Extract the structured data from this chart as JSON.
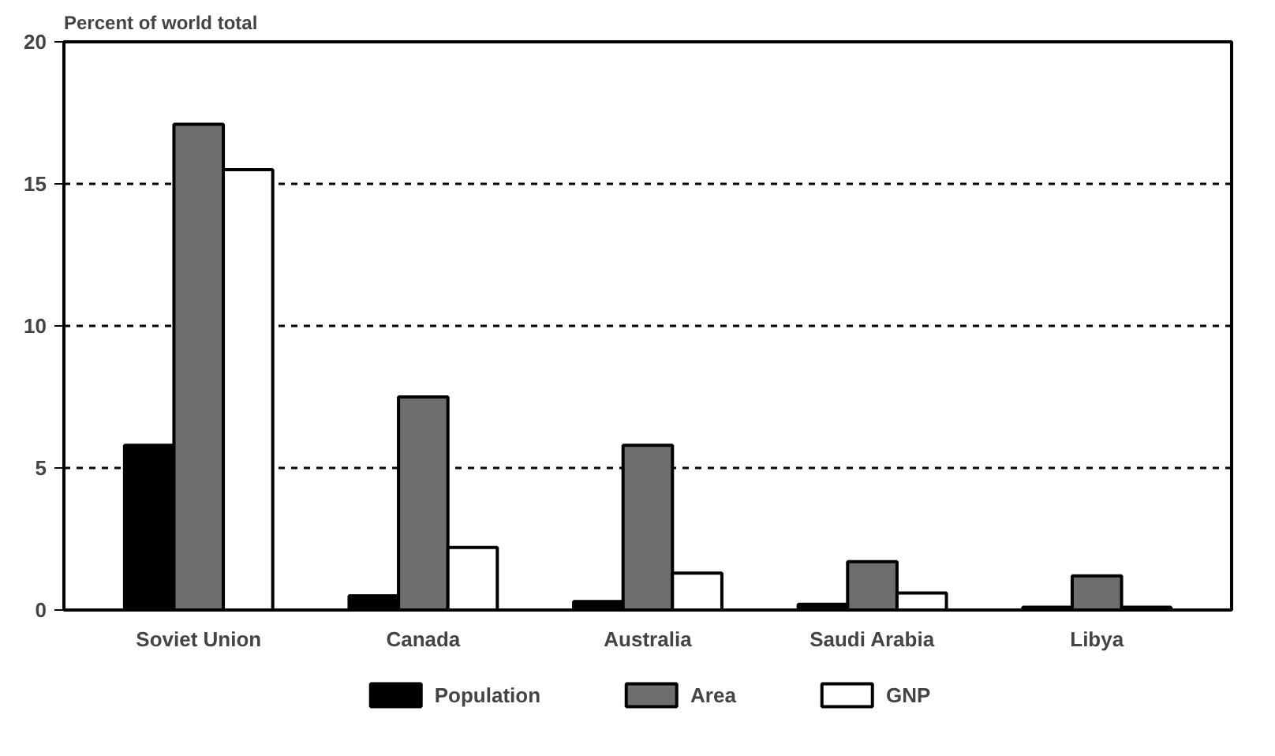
{
  "chart_data": {
    "type": "bar",
    "ylabel": "Percent of world total",
    "categories": [
      "Soviet Union",
      "Canada",
      "Australia",
      "Saudi Arabia",
      "Libya"
    ],
    "series": [
      {
        "name": "Population",
        "color": "#000000",
        "values": [
          5.8,
          0.5,
          0.3,
          0.2,
          0.1
        ]
      },
      {
        "name": "Area",
        "color": "#6e6e6e",
        "values": [
          17.1,
          7.5,
          5.8,
          1.7,
          1.2
        ]
      },
      {
        "name": "GNP",
        "color": "#ffffff",
        "values": [
          15.5,
          2.2,
          1.3,
          0.6,
          0.1
        ]
      }
    ],
    "ylim": [
      0,
      20
    ],
    "yticks": [
      0,
      5,
      10,
      15,
      20
    ],
    "grid": "y",
    "legend": "bottom"
  }
}
